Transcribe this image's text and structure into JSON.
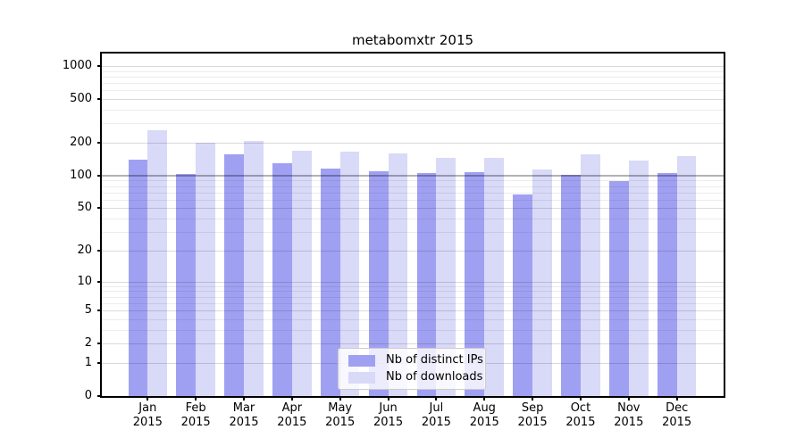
{
  "title": "metabomxtr 2015",
  "chart_data": {
    "type": "bar",
    "title": "metabomxtr 2015",
    "yscale": "log1p",
    "ylim": [
      0,
      1300
    ],
    "grid": true,
    "legend_position": "lower-center-inside",
    "categories": [
      "Jan",
      "Feb",
      "Mar",
      "Apr",
      "May",
      "Jun",
      "Jul",
      "Aug",
      "Sep",
      "Oct",
      "Nov",
      "Dec"
    ],
    "year": "2015",
    "series": [
      {
        "name": "Nb of distinct IPs",
        "color": "#a0a0f2",
        "values": [
          140,
          104,
          157,
          130,
          115,
          110,
          105,
          107,
          67,
          102,
          89,
          106
        ]
      },
      {
        "name": "Nb of downloads",
        "color": "#d9d9f8",
        "values": [
          260,
          200,
          208,
          170,
          166,
          160,
          146,
          144,
          114,
          157,
          137,
          152
        ]
      }
    ],
    "yticks": [
      0,
      1,
      2,
      5,
      10,
      20,
      50,
      100,
      200,
      500,
      1000
    ],
    "grid_major": [
      1,
      2,
      5,
      10,
      20,
      50,
      200,
      500,
      1000
    ],
    "grid_minor": [
      3,
      4,
      6,
      7,
      8,
      9,
      30,
      40,
      60,
      70,
      80,
      90,
      300,
      400,
      600,
      700,
      800,
      900
    ],
    "grid_emphasis": [
      100
    ],
    "axis_color": "#000000",
    "hundred_line_color": "#b0b0b0"
  }
}
